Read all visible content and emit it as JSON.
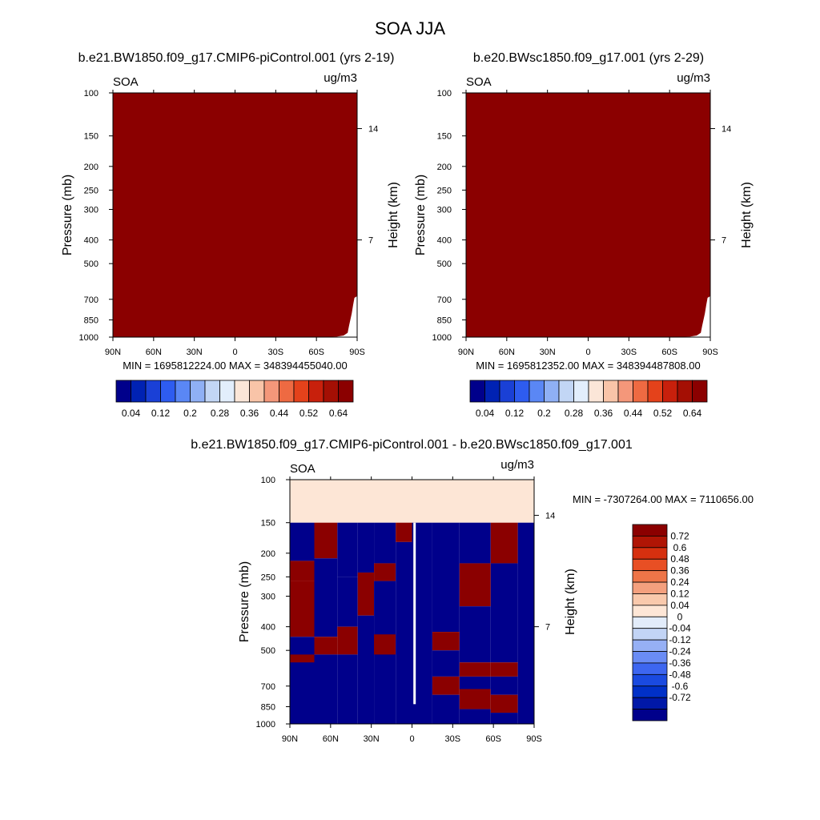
{
  "figure_title": "SOA JJA",
  "palettes": {
    "sequential": [
      "#00008b",
      "#0022b3",
      "#1a40d6",
      "#2e5cf0",
      "#5a87f5",
      "#8fb0f5",
      "#c2d6f5",
      "#e2eefc",
      "#fbe6d8",
      "#f9c4a8",
      "#f4977a",
      "#ee6a42",
      "#e4421b",
      "#c8200c",
      "#a40f04",
      "#8b0000"
    ],
    "diff": [
      "#00008b",
      "#0018a8",
      "#0030c8",
      "#1a4ae0",
      "#3d66f0",
      "#6a8cf5",
      "#96b0f5",
      "#c2d4f5",
      "#e2ecfa",
      "#fde6d6",
      "#f9c9ac",
      "#f4a07e",
      "#ee7548",
      "#e84f24",
      "#d6300f",
      "#b01505",
      "#8b0000"
    ]
  },
  "chart_data": [
    {
      "type": "heatmap",
      "id": "control",
      "title": "b.e21.BW1850.f09_g17.CMIP6-piControl.001 (yrs 2-19)",
      "left_label": "SOA",
      "right_label": "ug/m3",
      "xlabel": "",
      "ylabel": "Pressure (mb)",
      "ylabel_right": "Height (km)",
      "x_ticks": [
        "90N",
        "60N",
        "30N",
        "0",
        "30S",
        "60S",
        "90S"
      ],
      "x_tick_values": [
        90,
        60,
        30,
        0,
        -30,
        -60,
        -90
      ],
      "y_ticks": [
        "100",
        "150",
        "200",
        "250",
        "300",
        "400",
        "500",
        "700",
        "850",
        "1000"
      ],
      "y_tick_values": [
        100,
        150,
        200,
        250,
        300,
        400,
        500,
        700,
        850,
        1000
      ],
      "height_ticks": [
        "14",
        "7"
      ],
      "height_tick_pressures": [
        140,
        400
      ],
      "ylim": [
        1000,
        100
      ],
      "xlim": [
        90,
        -90
      ],
      "stats": "MIN = 1695812224.00  MAX = 348394455040.00",
      "field": "saturated above 0.64 everywhere; missing near surface at southern high latitudes",
      "fill_value_index": 15,
      "missing_profile": [
        {
          "lat": -55,
          "p": 1000
        },
        {
          "lat": -75,
          "p": 995
        },
        {
          "lat": -80,
          "p": 985
        },
        {
          "lat": -83,
          "p": 960
        },
        {
          "lat": -84,
          "p": 900
        },
        {
          "lat": -86,
          "p": 800
        },
        {
          "lat": -87,
          "p": 740
        },
        {
          "lat": -88,
          "p": 690
        },
        {
          "lat": -90,
          "p": 680
        }
      ],
      "colorbar": {
        "orientation": "horizontal",
        "labels": [
          "0.04",
          "0.12",
          "0.2",
          "0.28",
          "0.36",
          "0.44",
          "0.52",
          "0.64"
        ],
        "label_boundaries": [
          1,
          3,
          5,
          7,
          9,
          11,
          13,
          15
        ]
      }
    },
    {
      "type": "heatmap",
      "id": "test",
      "title": "b.e20.BWsc1850.f09_g17.001 (yrs 2-29)",
      "left_label": "SOA",
      "right_label": "ug/m3",
      "xlabel": "",
      "ylabel": "Pressure (mb)",
      "ylabel_right": "Height (km)",
      "x_ticks": [
        "90N",
        "60N",
        "30N",
        "0",
        "30S",
        "60S",
        "90S"
      ],
      "x_tick_values": [
        90,
        60,
        30,
        0,
        -30,
        -60,
        -90
      ],
      "y_ticks": [
        "100",
        "150",
        "200",
        "250",
        "300",
        "400",
        "500",
        "700",
        "850",
        "1000"
      ],
      "y_tick_values": [
        100,
        150,
        200,
        250,
        300,
        400,
        500,
        700,
        850,
        1000
      ],
      "height_ticks": [
        "14",
        "7"
      ],
      "height_tick_pressures": [
        140,
        400
      ],
      "ylim": [
        1000,
        100
      ],
      "xlim": [
        90,
        -90
      ],
      "stats": "MIN = 1695812352.00  MAX = 348394487808.00",
      "field": "saturated above 0.64 everywhere; missing near surface at southern high latitudes",
      "fill_value_index": 15,
      "missing_profile": [
        {
          "lat": -55,
          "p": 1000
        },
        {
          "lat": -75,
          "p": 995
        },
        {
          "lat": -80,
          "p": 985
        },
        {
          "lat": -83,
          "p": 960
        },
        {
          "lat": -84,
          "p": 900
        },
        {
          "lat": -86,
          "p": 800
        },
        {
          "lat": -87,
          "p": 740
        },
        {
          "lat": -88,
          "p": 690
        },
        {
          "lat": -90,
          "p": 680
        }
      ],
      "colorbar": {
        "orientation": "horizontal",
        "labels": [
          "0.04",
          "0.12",
          "0.2",
          "0.28",
          "0.36",
          "0.44",
          "0.52",
          "0.64"
        ],
        "label_boundaries": [
          1,
          3,
          5,
          7,
          9,
          11,
          13,
          15
        ]
      }
    },
    {
      "type": "heatmap",
      "id": "difference",
      "title": "b.e21.BW1850.f09_g17.CMIP6-piControl.001 - b.e20.BWsc1850.f09_g17.001",
      "left_label": "SOA",
      "right_label": "ug/m3",
      "xlabel": "",
      "ylabel": "Pressure (mb)",
      "ylabel_right": "Height (km)",
      "x_ticks": [
        "90N",
        "60N",
        "30N",
        "0",
        "30S",
        "60S",
        "90S"
      ],
      "x_tick_values": [
        90,
        60,
        30,
        0,
        -30,
        -60,
        -90
      ],
      "y_ticks": [
        "100",
        "150",
        "200",
        "250",
        "300",
        "400",
        "500",
        "700",
        "850",
        "1000"
      ],
      "y_tick_values": [
        100,
        150,
        200,
        250,
        300,
        400,
        500,
        700,
        850,
        1000
      ],
      "height_ticks": [
        "14",
        "7"
      ],
      "height_tick_pressures": [
        140,
        400
      ],
      "ylim": [
        1000,
        100
      ],
      "xlim": [
        90,
        -90
      ],
      "stats": "MIN = -7307264.00  MAX = 7110656.00",
      "field": "near-zero above 150 mb; saturated positive / negative bands below",
      "top_layer": {
        "p_top": 100,
        "p_bottom": 150,
        "value": 0.02
      },
      "columns": [
        {
          "lat_from": 90,
          "lat_to": 72,
          "bands": [
            [
              150,
              215,
              -0.8
            ],
            [
              215,
              260,
              0.8
            ],
            [
              260,
              440,
              0.8
            ],
            [
              440,
              1000,
              -0.8
            ],
            [
              520,
              560,
              0.8
            ]
          ]
        },
        {
          "lat_from": 72,
          "lat_to": 55,
          "bands": [
            [
              150,
              210,
              0.8
            ],
            [
              210,
              440,
              -0.8
            ],
            [
              440,
              520,
              0.8
            ],
            [
              520,
              1000,
              -0.8
            ]
          ]
        },
        {
          "lat_from": 55,
          "lat_to": 40,
          "bands": [
            [
              150,
              250,
              -0.8
            ],
            [
              250,
              400,
              -0.8
            ],
            [
              400,
              520,
              0.8
            ],
            [
              520,
              1000,
              -0.8
            ]
          ]
        },
        {
          "lat_from": 40,
          "lat_to": 28,
          "bands": [
            [
              150,
              240,
              -0.8
            ],
            [
              240,
              360,
              0.8
            ],
            [
              360,
              1000,
              -0.8
            ]
          ]
        },
        {
          "lat_from": 28,
          "lat_to": 12,
          "bands": [
            [
              150,
              220,
              -0.8
            ],
            [
              220,
              260,
              0.8
            ],
            [
              260,
              1000,
              -0.8
            ],
            [
              430,
              520,
              0.8
            ]
          ]
        },
        {
          "lat_from": 12,
          "lat_to": 0,
          "bands": [
            [
              150,
              180,
              0.8
            ],
            [
              180,
              1000,
              -0.8
            ]
          ]
        },
        {
          "lat_from": 0,
          "lat_to": -15,
          "bands": [
            [
              150,
              1000,
              -0.8
            ]
          ]
        },
        {
          "lat_from": -15,
          "lat_to": -35,
          "bands": [
            [
              150,
              420,
              -0.8
            ],
            [
              420,
              500,
              0.8
            ],
            [
              500,
              640,
              -0.8
            ],
            [
              640,
              760,
              0.8
            ],
            [
              760,
              1000,
              -0.8
            ]
          ]
        },
        {
          "lat_from": -35,
          "lat_to": -58,
          "bands": [
            [
              150,
              220,
              -0.8
            ],
            [
              220,
              330,
              0.8
            ],
            [
              330,
              560,
              -0.8
            ],
            [
              560,
              640,
              0.8
            ],
            [
              640,
              720,
              -0.8
            ],
            [
              720,
              870,
              0.8
            ],
            [
              870,
              1000,
              -0.8
            ]
          ]
        },
        {
          "lat_from": -58,
          "lat_to": -78,
          "bands": [
            [
              150,
              220,
              0.8
            ],
            [
              220,
              560,
              -0.8
            ],
            [
              560,
              640,
              0.8
            ],
            [
              640,
              760,
              -0.8
            ],
            [
              760,
              900,
              0.8
            ],
            [
              900,
              1000,
              -0.8
            ]
          ]
        },
        {
          "lat_from": -78,
          "lat_to": -90,
          "bands": [
            [
              150,
              1000,
              -0.8
            ]
          ]
        }
      ],
      "colorbar": {
        "orientation": "vertical",
        "labels": [
          "0.72",
          "0.6",
          "0.48",
          "0.36",
          "0.24",
          "0.12",
          "0.04",
          "0",
          "-0.04",
          "-0.12",
          "-0.24",
          "-0.36",
          "-0.48",
          "-0.6",
          "-0.72"
        ]
      }
    }
  ]
}
